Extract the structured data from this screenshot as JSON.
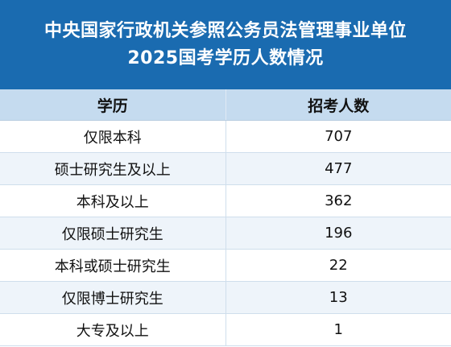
{
  "title": {
    "line1": "中央国家行政机关参照公务员法管理事业单位",
    "line2": "2025国考学历人数情况"
  },
  "table": {
    "headers": [
      "学历",
      "招考人数"
    ],
    "rows": [
      {
        "degree": "仅限本科",
        "count": "707"
      },
      {
        "degree": "硕士研究生及以上",
        "count": "477"
      },
      {
        "degree": "本科及以上",
        "count": "362"
      },
      {
        "degree": "仅限硕士研究生",
        "count": "196"
      },
      {
        "degree": "本科或硕士研究生",
        "count": "22"
      },
      {
        "degree": "仅限博士研究生",
        "count": "13"
      },
      {
        "degree": "大专及以上",
        "count": "1"
      }
    ]
  },
  "colors": {
    "title_background": "#1a6bb0",
    "header_background": "#c5dbef",
    "alt_row_background": "#eef4fa"
  }
}
